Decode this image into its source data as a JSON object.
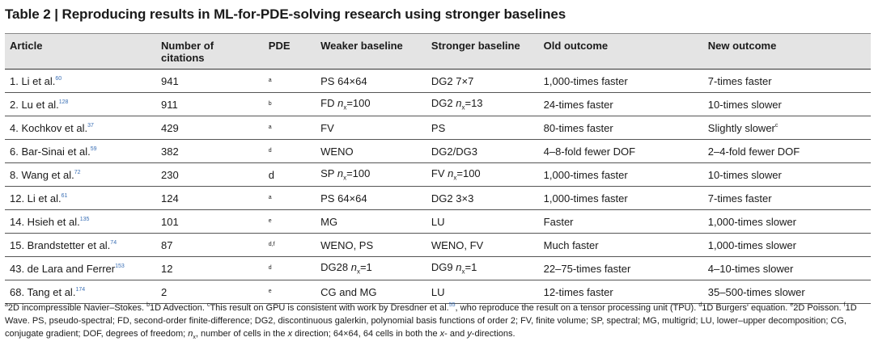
{
  "title": "Table 2 | Reproducing results in ML-for-PDE-solving research using stronger baselines",
  "headers": {
    "article": "Article",
    "citations": "Number of citations",
    "pde": "PDE",
    "weaker": "Weaker baseline",
    "stronger": "Stronger baseline",
    "old": "Old outcome",
    "new": "New outcome"
  },
  "rows": [
    {
      "article": "1. Li et al.",
      "ref": "60",
      "citations": "941",
      "pde": "a",
      "weaker": "PS 64×64",
      "stronger": "DG2 7×7",
      "old": "1,000-times faster",
      "new": "7-times faster",
      "new_sup": ""
    },
    {
      "article": "2. Lu et al.",
      "ref": "128",
      "citations": "911",
      "pde": "b",
      "weaker_pre": "FD ",
      "weaker_var": "n",
      "weaker_sub": "x",
      "weaker_post": "=100",
      "stronger_pre": "DG2 ",
      "stronger_var": "n",
      "stronger_sub": "x",
      "stronger_post": "=13",
      "old": "24-times faster",
      "new": "10-times slower",
      "new_sup": ""
    },
    {
      "article": "4. Kochkov et al.",
      "ref": "37",
      "citations": "429",
      "pde": "a",
      "weaker": "FV",
      "stronger": "PS",
      "old": "80-times faster",
      "new": "Slightly slower",
      "new_sup": "c"
    },
    {
      "article": "6. Bar-Sinai et al.",
      "ref": "59",
      "citations": "382",
      "pde": "d",
      "weaker": "WENO",
      "stronger": "DG2/DG3",
      "old": "4–8-fold fewer DOF",
      "new": "2–4-fold fewer DOF",
      "new_sup": ""
    },
    {
      "article": "8. Wang et al.",
      "ref": "72",
      "citations": "230",
      "pde": "d",
      "weaker_pre": "SP ",
      "weaker_var": "n",
      "weaker_sub": "x",
      "weaker_post": "=100",
      "stronger_pre": "FV ",
      "stronger_var": "n",
      "stronger_sub": "x",
      "stronger_post": "=100",
      "old": "1,000-times faster",
      "new": "10-times slower",
      "new_sup": ""
    },
    {
      "article": "12. Li et al.",
      "ref": "61",
      "citations": "124",
      "pde": "a",
      "weaker": "PS 64×64",
      "stronger": "DG2 3×3",
      "old": "1,000-times faster",
      "new": "7-times faster",
      "new_sup": ""
    },
    {
      "article": "14. Hsieh et al.",
      "ref": "135",
      "citations": "101",
      "pde": "e",
      "weaker": "MG",
      "stronger": "LU",
      "old": "Faster",
      "new": "1,000-times slower",
      "new_sup": ""
    },
    {
      "article": "15. Brandstetter et al.",
      "ref": "74",
      "citations": "87",
      "pde": "d,f",
      "weaker": "WENO, PS",
      "stronger": "WENO, FV",
      "old": "Much faster",
      "new": "1,000-times slower",
      "new_sup": ""
    },
    {
      "article": "43. de Lara and Ferrer",
      "ref": "153",
      "citations": "12",
      "pde": "d",
      "weaker_pre": "DG28 ",
      "weaker_var": "n",
      "weaker_sub": "x",
      "weaker_post": "=1",
      "stronger_pre": "DG9 ",
      "stronger_var": "n",
      "stronger_sub": "x",
      "stronger_post": "=1",
      "old": "22–75-times faster",
      "new": "4–10-times slower",
      "new_sup": ""
    },
    {
      "article": "68. Tang et al.",
      "ref": "174",
      "citations": "2",
      "pde": "e",
      "weaker": "CG and MG",
      "stronger": "LU",
      "old": "12-times faster",
      "new": "35–500-times slower",
      "new_sup": ""
    }
  ],
  "footnote": {
    "a_mark": "a",
    "a": "2D incompressible Navier–Stokes. ",
    "b_mark": "b",
    "b": "1D Advection. ",
    "c_mark": "c",
    "c": "This result on GPU is consistent with work by Dresdner et al.",
    "c_ref": "55",
    "c_post": ", who reproduce the result on a tensor processing unit (TPU). ",
    "d_mark": "d",
    "d": "1D Burgers' equation. ",
    "e_mark": "e",
    "e": "2D Poisson. ",
    "f_mark": "f",
    "f": "1D Wave. PS, pseudo-spectral; FD, second-order finite-difference; DG2, discontinuous galerkin, polynomial basis functions of order 2; FV, finite volume; SP, spectral; MG, multigrid; LU, lower–upper decomposition; CG, conjugate gradient; DOF, degrees of freedom; ",
    "nx_var": "n",
    "nx_sub": "x",
    "nx_def": ", number of cells in the ",
    "x_var": "x",
    "nx_def2": " direction; 64×64, 64 cells in both the ",
    "x2": "x",
    "and": "- and ",
    "y": "y",
    "end": "-directions."
  },
  "colors": {
    "header_bg": "#e4e4e4",
    "ref": "#3a6fb5"
  }
}
